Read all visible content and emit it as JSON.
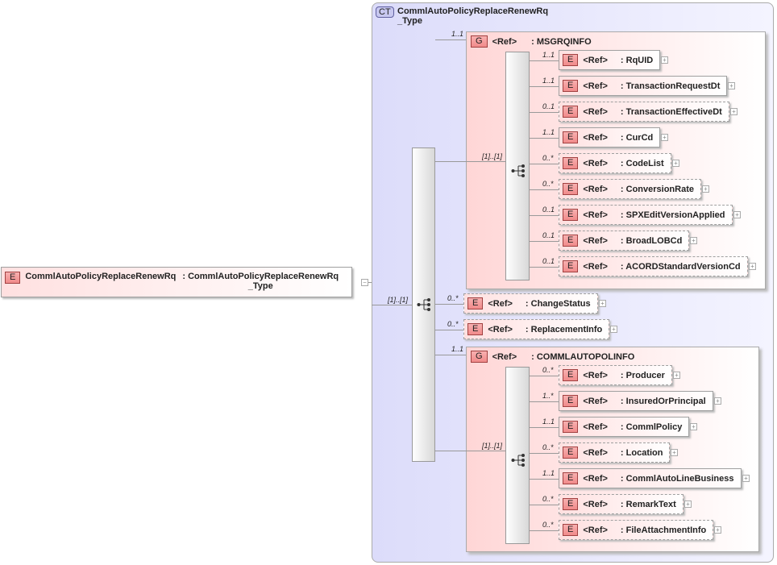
{
  "root": {
    "badge": "E",
    "name": "CommlAutoPolicyReplaceRenewRq",
    "type_line1": ": CommlAutoPolicyReplaceRenewRq",
    "type_line2": "_Type",
    "toggle": "−"
  },
  "complex_type": {
    "badge": "CT",
    "line1": "CommlAutoPolicyReplaceRenewRq",
    "line2": "_Type"
  },
  "sequence_cardinality": "[1]..[1]",
  "groups": [
    {
      "cardinality": "1..1",
      "badge": "G",
      "ref": "<Ref>",
      "name": ": MSGRQINFO",
      "sequence_cardinality": "[1]..[1]",
      "children": [
        {
          "cardinality": "1..1",
          "name": ": RqUID"
        },
        {
          "cardinality": "1..1",
          "name": ": TransactionRequestDt"
        },
        {
          "cardinality": "0..1",
          "name": ": TransactionEffectiveDt"
        },
        {
          "cardinality": "1..1",
          "name": ": CurCd"
        },
        {
          "cardinality": "0..*",
          "name": ": CodeList"
        },
        {
          "cardinality": "0..*",
          "name": ": ConversionRate"
        },
        {
          "cardinality": "0..1",
          "name": ": SPXEditVersionApplied"
        },
        {
          "cardinality": "0..1",
          "name": ": BroadLOBCd"
        },
        {
          "cardinality": "0..1",
          "name": ": ACORDStandardVersionCd"
        }
      ]
    },
    {
      "cardinality": "1..1",
      "badge": "G",
      "ref": "<Ref>",
      "name": ": COMMLAUTOPOLINFO",
      "sequence_cardinality": "[1]..[1]",
      "children": [
        {
          "cardinality": "0..*",
          "name": ": Producer"
        },
        {
          "cardinality": "1..*",
          "name": ": InsuredOrPrincipal"
        },
        {
          "cardinality": "1..1",
          "name": ": CommlPolicy"
        },
        {
          "cardinality": "0..*",
          "name": ": Location"
        },
        {
          "cardinality": "1..1",
          "name": ": CommlAutoLineBusiness"
        },
        {
          "cardinality": "0..*",
          "name": ": RemarkText"
        },
        {
          "cardinality": "0..*",
          "name": ": FileAttachmentInfo"
        }
      ]
    }
  ],
  "direct_children": [
    {
      "cardinality": "0..*",
      "name": ": ChangeStatus"
    },
    {
      "cardinality": "0..*",
      "name": ": ReplacementInfo"
    }
  ],
  "element_badge": "E",
  "ref_label": "<Ref>",
  "expand_symbol": "+",
  "colors": {
    "element_fill": "#ffe0e0",
    "badge": "#f08a8a",
    "complex_type_fill": "#e0e0fb",
    "complex_type_border": "#9090c0"
  }
}
